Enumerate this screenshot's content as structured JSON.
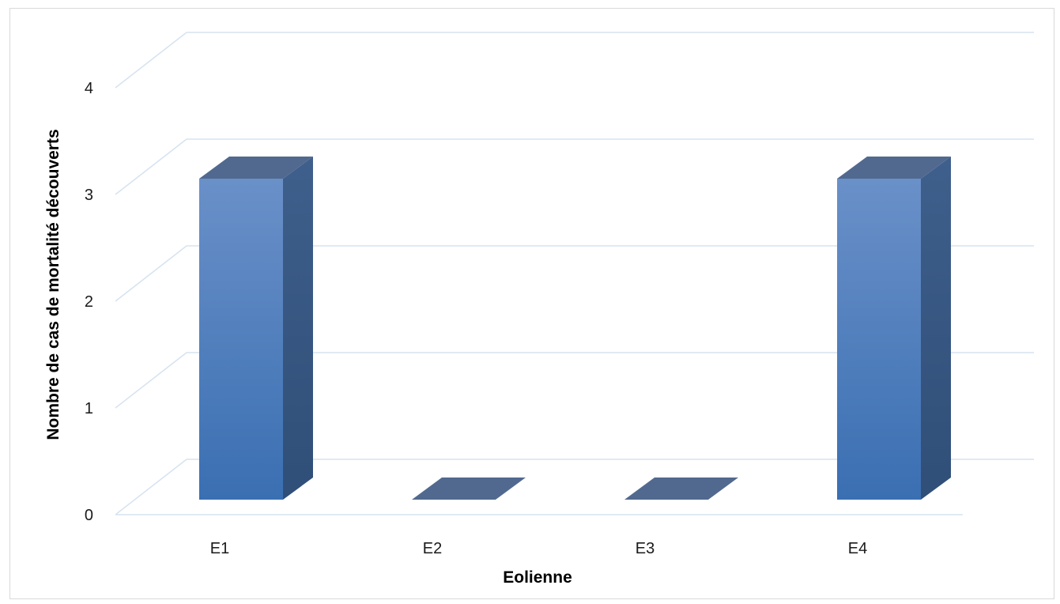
{
  "chart_data": {
    "type": "bar",
    "style": "3d-column",
    "categories": [
      "E1",
      "E2",
      "E3",
      "E4"
    ],
    "values": [
      3,
      0,
      0,
      3
    ],
    "xlabel": "Eolienne",
    "ylabel": "Nombre de cas de mortalité découverts",
    "ylim": [
      0,
      4
    ],
    "yticks": [
      "0",
      "1",
      "2",
      "3",
      "4"
    ],
    "grid": true,
    "legend": "none",
    "colors": {
      "bar_front_top": "#6a90c8",
      "bar_front_bottom": "#3a6fb2",
      "bar_side": "#2f4f78",
      "bar_top": "#51698f",
      "grid": "#d6e3f0"
    }
  }
}
